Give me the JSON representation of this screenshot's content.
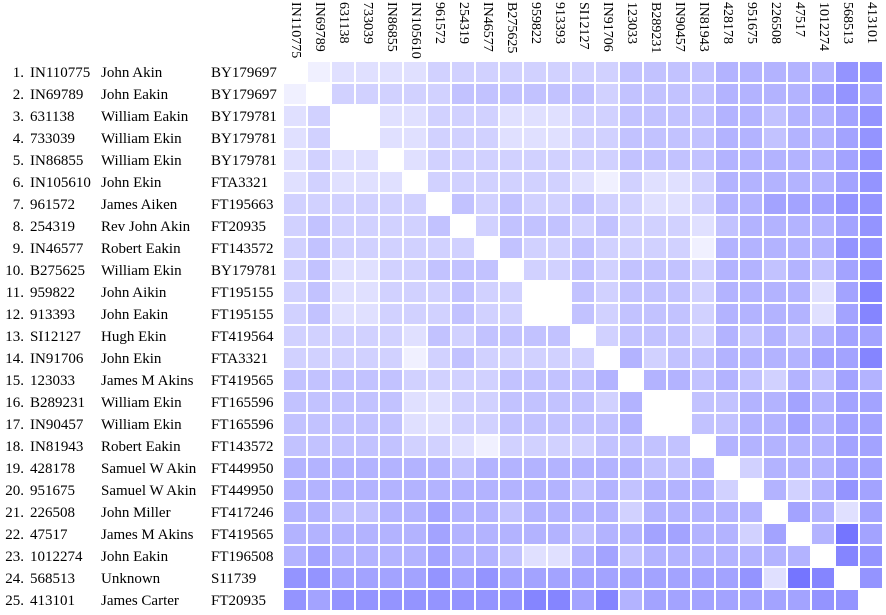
{
  "chart_data": {
    "type": "heatmap",
    "title": "",
    "color_scale": {
      "low": "#ffffff",
      "high": "#6666ff",
      "min": 0,
      "max": 10
    },
    "rows": [
      {
        "num": "1.",
        "kit": "IN110775",
        "name": "John Akin",
        "tree": "BY179697"
      },
      {
        "num": "2.",
        "kit": "IN69789",
        "name": "John Eakin",
        "tree": "BY179697"
      },
      {
        "num": "3.",
        "kit": "631138",
        "name": "William Eakin",
        "tree": "BY179781"
      },
      {
        "num": "4.",
        "kit": "733039",
        "name": "William Ekin",
        "tree": "BY179781"
      },
      {
        "num": "5.",
        "kit": "IN86855",
        "name": "William Ekin",
        "tree": "BY179781"
      },
      {
        "num": "6.",
        "kit": "IN105610",
        "name": "John Ekin",
        "tree": "FTA3321"
      },
      {
        "num": "7.",
        "kit": "961572",
        "name": "James Aiken",
        "tree": "FT195663"
      },
      {
        "num": "8.",
        "kit": "254319",
        "name": "Rev John Akin",
        "tree": "FT20935"
      },
      {
        "num": "9.",
        "kit": "IN46577",
        "name": "Robert Eakin",
        "tree": "FT143572"
      },
      {
        "num": "10.",
        "kit": "B275625",
        "name": "William Ekin",
        "tree": "BY179781"
      },
      {
        "num": "11.",
        "kit": "959822",
        "name": "John Aikin",
        "tree": "FT195155"
      },
      {
        "num": "12.",
        "kit": "913393",
        "name": "John Eakin",
        "tree": "FT195155"
      },
      {
        "num": "13.",
        "kit": "SI12127",
        "name": "Hugh Ekin",
        "tree": "FT419564"
      },
      {
        "num": "14.",
        "kit": "IN91706",
        "name": "John Ekin",
        "tree": "FTA3321"
      },
      {
        "num": "15.",
        "kit": "123033",
        "name": "James M Akins",
        "tree": "FT419565"
      },
      {
        "num": "16.",
        "kit": "B289231",
        "name": "William Ekin",
        "tree": "FT165596"
      },
      {
        "num": "17.",
        "kit": "IN90457",
        "name": "William Ekin",
        "tree": "FT165596"
      },
      {
        "num": "18.",
        "kit": "IN81943",
        "name": "Robert Eakin",
        "tree": "FT143572"
      },
      {
        "num": "19.",
        "kit": "428178",
        "name": "Samuel W Akin",
        "tree": "FT449950"
      },
      {
        "num": "20.",
        "kit": "951675",
        "name": "Samuel W Akin",
        "tree": "FT449950"
      },
      {
        "num": "21.",
        "kit": "226508",
        "name": "John Miller",
        "tree": "FT417246"
      },
      {
        "num": "22.",
        "kit": "47517",
        "name": "James M Akins",
        "tree": "FT419565"
      },
      {
        "num": "23.",
        "kit": "1012274",
        "name": "John Eakin",
        "tree": "FT196508"
      },
      {
        "num": "24.",
        "kit": "568513",
        "name": "Unknown",
        "tree": "S11739"
      },
      {
        "num": "25.",
        "kit": "413101",
        "name": "James Carter",
        "tree": "FT20935"
      }
    ],
    "columns": [
      "IN110775",
      "IN69789",
      "631138",
      "733039",
      "IN86855",
      "IN105610",
      "961572",
      "254319",
      "IN46577",
      "B275625",
      "959822",
      "913393",
      "SI12127",
      "IN91706",
      "123033",
      "B289231",
      "IN90457",
      "IN81943",
      "428178",
      "951675",
      "226508",
      "47517",
      "1012274",
      "568513",
      "413101"
    ],
    "values": [
      [
        0,
        1,
        2,
        2,
        2,
        2,
        3,
        3,
        3,
        3,
        3,
        3,
        3,
        3,
        4,
        4,
        4,
        4,
        5,
        5,
        5,
        5,
        5,
        7,
        7
      ],
      [
        1,
        0,
        3,
        3,
        3,
        3,
        3,
        4,
        4,
        4,
        4,
        4,
        4,
        3,
        4,
        4,
        4,
        4,
        5,
        5,
        5,
        5,
        6,
        7,
        6
      ],
      [
        2,
        3,
        0,
        0,
        2,
        2,
        3,
        3,
        3,
        2,
        2,
        2,
        3,
        3,
        4,
        4,
        4,
        4,
        5,
        5,
        4,
        5,
        5,
        6,
        7
      ],
      [
        2,
        3,
        0,
        0,
        2,
        2,
        3,
        3,
        3,
        2,
        2,
        2,
        3,
        3,
        4,
        4,
        4,
        4,
        5,
        5,
        4,
        5,
        5,
        6,
        7
      ],
      [
        2,
        3,
        2,
        2,
        0,
        2,
        3,
        3,
        3,
        3,
        3,
        3,
        3,
        3,
        4,
        4,
        4,
        4,
        5,
        5,
        5,
        5,
        5,
        6,
        7
      ],
      [
        2,
        3,
        2,
        2,
        2,
        0,
        3,
        3,
        3,
        3,
        3,
        3,
        2,
        1,
        3,
        2,
        2,
        3,
        5,
        5,
        5,
        5,
        5,
        6,
        7
      ],
      [
        3,
        3,
        3,
        3,
        3,
        3,
        0,
        4,
        3,
        4,
        3,
        3,
        4,
        3,
        3,
        2,
        2,
        3,
        5,
        5,
        6,
        6,
        6,
        7,
        7
      ],
      [
        3,
        4,
        3,
        3,
        3,
        3,
        4,
        0,
        3,
        4,
        4,
        4,
        3,
        4,
        3,
        3,
        3,
        2,
        4,
        5,
        5,
        5,
        5,
        6,
        7
      ],
      [
        3,
        4,
        3,
        3,
        3,
        3,
        3,
        3,
        0,
        4,
        3,
        3,
        4,
        3,
        3,
        3,
        3,
        1,
        5,
        5,
        5,
        5,
        5,
        7,
        7
      ],
      [
        3,
        4,
        2,
        2,
        3,
        3,
        4,
        4,
        4,
        0,
        3,
        3,
        4,
        3,
        4,
        4,
        4,
        3,
        5,
        5,
        4,
        5,
        4,
        6,
        7
      ],
      [
        3,
        4,
        2,
        2,
        3,
        3,
        3,
        4,
        3,
        3,
        0,
        0,
        4,
        3,
        4,
        4,
        4,
        3,
        5,
        5,
        5,
        5,
        2,
        6,
        8
      ],
      [
        3,
        4,
        2,
        2,
        3,
        3,
        3,
        4,
        3,
        3,
        0,
        0,
        4,
        3,
        4,
        4,
        4,
        3,
        5,
        5,
        5,
        5,
        2,
        6,
        8
      ],
      [
        3,
        3,
        3,
        3,
        3,
        2,
        4,
        3,
        4,
        4,
        4,
        4,
        0,
        3,
        4,
        4,
        4,
        3,
        5,
        4,
        5,
        4,
        5,
        6,
        6
      ],
      [
        3,
        3,
        3,
        3,
        3,
        1,
        3,
        4,
        3,
        3,
        3,
        3,
        3,
        0,
        5,
        3,
        4,
        4,
        5,
        5,
        5,
        5,
        6,
        6,
        8
      ],
      [
        4,
        4,
        4,
        4,
        4,
        3,
        3,
        3,
        3,
        4,
        4,
        4,
        4,
        5,
        0,
        5,
        5,
        4,
        5,
        4,
        3,
        5,
        4,
        6,
        5
      ],
      [
        4,
        4,
        4,
        4,
        4,
        2,
        2,
        3,
        3,
        4,
        4,
        4,
        4,
        3,
        5,
        0,
        0,
        4,
        4,
        5,
        5,
        6,
        5,
        6,
        6
      ],
      [
        4,
        4,
        4,
        4,
        4,
        2,
        2,
        3,
        3,
        4,
        4,
        4,
        4,
        4,
        5,
        0,
        0,
        4,
        4,
        5,
        5,
        6,
        5,
        6,
        6
      ],
      [
        4,
        4,
        4,
        4,
        4,
        3,
        3,
        2,
        1,
        3,
        3,
        3,
        3,
        4,
        4,
        4,
        4,
        0,
        5,
        5,
        5,
        5,
        5,
        6,
        6
      ],
      [
        5,
        5,
        5,
        5,
        5,
        5,
        5,
        4,
        5,
        5,
        5,
        5,
        5,
        5,
        5,
        4,
        4,
        5,
        0,
        3,
        5,
        5,
        5,
        6,
        6
      ],
      [
        5,
        5,
        5,
        5,
        5,
        5,
        5,
        5,
        5,
        5,
        5,
        5,
        4,
        5,
        4,
        5,
        5,
        5,
        3,
        0,
        5,
        3,
        5,
        7,
        6
      ],
      [
        5,
        5,
        4,
        4,
        5,
        5,
        6,
        5,
        5,
        4,
        5,
        5,
        5,
        5,
        3,
        5,
        5,
        5,
        5,
        5,
        0,
        6,
        5,
        2,
        6
      ],
      [
        5,
        5,
        5,
        5,
        5,
        5,
        6,
        5,
        5,
        5,
        5,
        5,
        4,
        5,
        5,
        6,
        6,
        5,
        5,
        3,
        6,
        0,
        5,
        9,
        6
      ],
      [
        5,
        6,
        5,
        5,
        5,
        5,
        6,
        5,
        5,
        4,
        2,
        2,
        5,
        6,
        4,
        5,
        5,
        5,
        5,
        5,
        5,
        5,
        0,
        8,
        7
      ],
      [
        7,
        7,
        6,
        6,
        6,
        6,
        7,
        6,
        7,
        6,
        6,
        6,
        6,
        6,
        6,
        6,
        6,
        6,
        6,
        7,
        2,
        9,
        8,
        0,
        7
      ],
      [
        7,
        6,
        7,
        7,
        7,
        7,
        7,
        7,
        7,
        7,
        8,
        8,
        6,
        8,
        5,
        6,
        6,
        6,
        6,
        6,
        6,
        6,
        7,
        7,
        0
      ]
    ]
  }
}
